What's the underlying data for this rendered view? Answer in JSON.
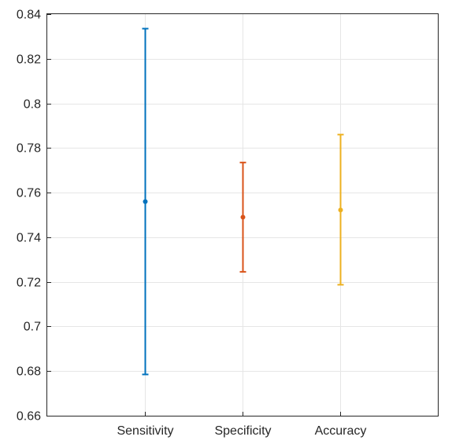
{
  "chart_data": {
    "type": "errorbar",
    "categories": [
      "Sensitivity",
      "Specificity",
      "Accuracy"
    ],
    "series": [
      {
        "category": "Sensitivity",
        "mean": 0.756,
        "lower": 0.6785,
        "upper": 0.8335,
        "color": "#0072BD"
      },
      {
        "category": "Specificity",
        "mean": 0.749,
        "lower": 0.7245,
        "upper": 0.7735,
        "color": "#D95319"
      },
      {
        "category": "Accuracy",
        "mean": 0.7522,
        "lower": 0.7187,
        "upper": 0.786,
        "color": "#EDB120"
      }
    ],
    "ylim": [
      0.66,
      0.84
    ],
    "yticks": [
      "0.66",
      "0.68",
      "0.7",
      "0.72",
      "0.74",
      "0.76",
      "0.78",
      "0.8",
      "0.82",
      "0.84"
    ],
    "grid": true,
    "title": "",
    "xlabel": "",
    "ylabel": ""
  }
}
